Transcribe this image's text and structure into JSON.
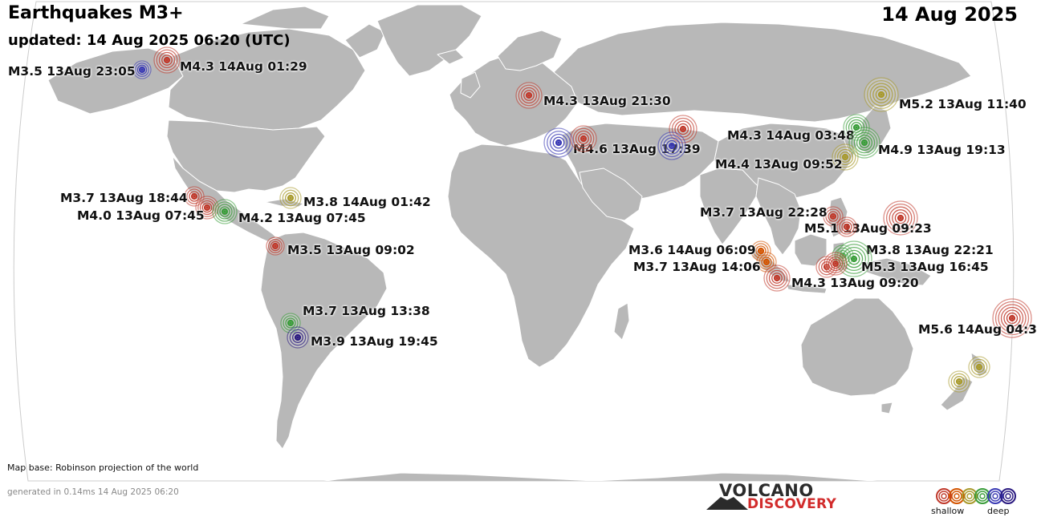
{
  "header": {
    "title": "Earthquakes M3+",
    "updated": "updated: 14 Aug 2025 06:20 (UTC)",
    "date": "14 Aug 2025"
  },
  "footer": {
    "map_base": "Map base: Robinson projection of the world",
    "generated": "generated in 0.14ms 14 Aug 2025 06:20"
  },
  "logo": {
    "line1": "VOLCANO",
    "line2": "DISCOVERY"
  },
  "legend": {
    "shallow": "shallow",
    "deep": "deep",
    "colors": [
      "#c0392b",
      "#d35400",
      "#a89a2c",
      "#3a9d3a",
      "#3a3ab4",
      "#2a1a80"
    ]
  },
  "colors": {
    "ocean": "#ffffff",
    "land": "#b8b8b8",
    "border": "#ffffff"
  },
  "quakes": [
    {
      "label": "M3.5 13Aug 23:05",
      "magnitude": 3.5,
      "color": "#3a3ab4"
    },
    {
      "label": "M4.3 14Aug 01:29",
      "magnitude": 4.3,
      "color": "#c0392b"
    },
    {
      "label": "M4.3 13Aug 21:30",
      "magnitude": 4.3,
      "color": "#c0392b"
    },
    {
      "label": "M4.6 13Aug 17:39",
      "magnitude": 4.6,
      "color": "#3a3ab4"
    },
    {
      "label": "",
      "magnitude": 4.3,
      "color": "#c0392b"
    },
    {
      "label": "",
      "magnitude": 4.5,
      "color": "#c0392b"
    },
    {
      "label": "",
      "magnitude": 4.5,
      "color": "#3a3ab4"
    },
    {
      "label": "M5.2 13Aug 11:40",
      "magnitude": 5.2,
      "color": "#a89a2c"
    },
    {
      "label": "M4.3 14Aug 03:48",
      "magnitude": 4.3,
      "color": "#3a9d3a"
    },
    {
      "label": "M4.9 13Aug 19:13",
      "magnitude": 4.9,
      "color": "#3a9d3a"
    },
    {
      "label": "M4.4 13Aug 09:52",
      "magnitude": 4.4,
      "color": "#a89a2c"
    },
    {
      "label": "M3.7 13Aug 18:44",
      "magnitude": 3.7,
      "color": "#c0392b"
    },
    {
      "label": "M4.0 13Aug 07:45",
      "magnitude": 4.0,
      "color": "#c0392b"
    },
    {
      "label": "M4.2 13Aug 07:45",
      "magnitude": 4.2,
      "color": "#3a9d3a"
    },
    {
      "label": "M3.8 14Aug 01:42",
      "magnitude": 3.8,
      "color": "#a89a2c"
    },
    {
      "label": "M3.5 13Aug 09:02",
      "magnitude": 3.5,
      "color": "#c0392b"
    },
    {
      "label": "M3.7 13Aug 22:28",
      "magnitude": 3.7,
      "color": "#c0392b"
    },
    {
      "label": "M5.1 13Aug 09:23",
      "magnitude": 5.1,
      "color": "#c0392b"
    },
    {
      "label": "",
      "magnitude": 3.6,
      "color": "#c0392b"
    },
    {
      "label": "M3.8 13Aug 22:21",
      "magnitude": 3.8,
      "color": "#3a9d3a"
    },
    {
      "label": "M5.3 13Aug 16:45",
      "magnitude": 5.3,
      "color": "#3a9d3a"
    },
    {
      "label": "",
      "magnitude": 3.9,
      "color": "#c0392b"
    },
    {
      "label": "",
      "magnitude": 4.0,
      "color": "#c0392b"
    },
    {
      "label": "M3.6 14Aug 06:09",
      "magnitude": 3.6,
      "color": "#d35400"
    },
    {
      "label": "M3.7 13Aug 14:06",
      "magnitude": 3.7,
      "color": "#d35400"
    },
    {
      "label": "M4.3 13Aug 09:20",
      "magnitude": 4.3,
      "color": "#c0392b"
    },
    {
      "label": "M3.7 13Aug 13:38",
      "magnitude": 3.7,
      "color": "#3a9d3a"
    },
    {
      "label": "M3.9 13Aug 19:45",
      "magnitude": 3.9,
      "color": "#2a1a80"
    },
    {
      "label": "M5.6 14Aug 04:3",
      "magnitude": 5.6,
      "color": "#c0392b"
    },
    {
      "label": "",
      "magnitude": 3.8,
      "color": "#a89a2c"
    },
    {
      "label": "",
      "magnitude": 3.8,
      "color": "#a89a2c"
    }
  ]
}
